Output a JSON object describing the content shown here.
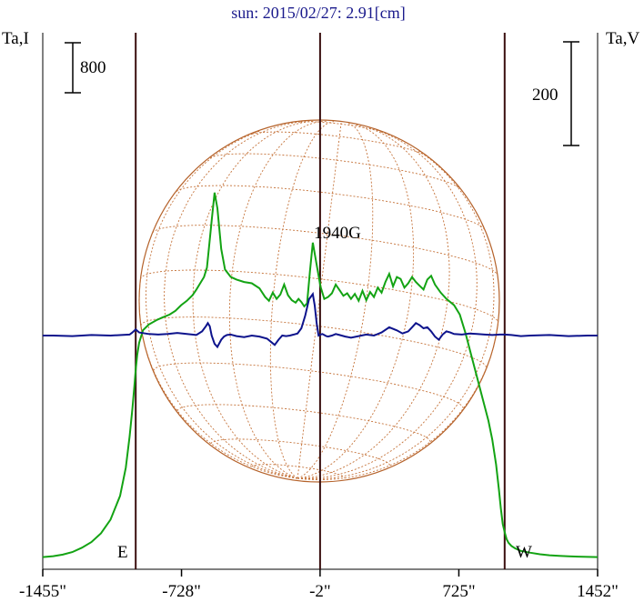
{
  "chart_data": {
    "type": "line",
    "title": "sun: 2015/02/27: 2.91[cm]",
    "left_axis_label": "Ta,I",
    "right_axis_label": "Ta,V",
    "left_scale_bar_label": "800",
    "right_scale_bar_label": "200",
    "annotation": "1940G",
    "limb_labels": {
      "east": "E",
      "west": "W"
    },
    "x_tick_labels": [
      "-1455\"",
      "-728\"",
      "-2\"",
      "725\"",
      "1452\""
    ],
    "x_ticks": [
      -1455,
      -728,
      -2,
      725,
      1452
    ],
    "xlim": [
      -1455,
      1452
    ],
    "limb_positions": [
      -968,
      965
    ],
    "center_line": -2,
    "grid": false,
    "colors": {
      "intensity": "#13a313",
      "polarization": "#0d138c",
      "disk": "#b5622a",
      "grid": "#c5733a",
      "limb_lines": "#3a0f0f",
      "title": "#1a1a8c"
    },
    "series": [
      {
        "name": "Ta,I",
        "axis": "left",
        "x": [
          -1455,
          -1400,
          -1350,
          -1300,
          -1250,
          -1200,
          -1150,
          -1100,
          -1050,
          -1020,
          -1000,
          -985,
          -975,
          -968,
          -960,
          -950,
          -930,
          -900,
          -860,
          -830,
          -790,
          -760,
          -730,
          -700,
          -670,
          -650,
          -630,
          -610,
          -595,
          -585,
          -570,
          -555,
          -540,
          -520,
          -500,
          -470,
          -440,
          -400,
          -360,
          -320,
          -290,
          -270,
          -250,
          -230,
          -210,
          -190,
          -170,
          -150,
          -130,
          -115,
          -100,
          -85,
          -70,
          -55,
          -40,
          -20,
          0,
          20,
          40,
          60,
          80,
          100,
          120,
          140,
          160,
          180,
          200,
          220,
          240,
          260,
          280,
          300,
          320,
          340,
          360,
          380,
          400,
          420,
          440,
          460,
          480,
          500,
          520,
          540,
          560,
          580,
          600,
          630,
          660,
          700,
          730,
          760,
          790,
          820,
          850,
          880,
          900,
          920,
          935,
          945,
          955,
          965,
          975,
          985,
          1000,
          1020,
          1050,
          1100,
          1150,
          1200,
          1250,
          1300,
          1350,
          1400,
          1452
        ],
        "values": [
          20,
          35,
          60,
          100,
          170,
          260,
          400,
          620,
          1000,
          1450,
          1950,
          2400,
          2750,
          3020,
          3260,
          3450,
          3650,
          3740,
          3810,
          3850,
          3900,
          3960,
          4050,
          4120,
          4210,
          4300,
          4400,
          4500,
          4650,
          4950,
          5400,
          5850,
          5600,
          4950,
          4620,
          4500,
          4460,
          4420,
          4400,
          4320,
          4180,
          4120,
          4250,
          4150,
          4220,
          4380,
          4210,
          4130,
          4090,
          4150,
          4100,
          4030,
          4080,
          4600,
          5050,
          4700,
          4350,
          4150,
          4180,
          4240,
          4380,
          4290,
          4200,
          4240,
          4150,
          4230,
          4120,
          4280,
          4130,
          4260,
          4180,
          4330,
          4250,
          4420,
          4550,
          4350,
          4500,
          4470,
          4330,
          4400,
          4500,
          4420,
          4360,
          4300,
          4460,
          4520,
          4380,
          4250,
          4150,
          4050,
          3900,
          3600,
          3250,
          2900,
          2550,
          2200,
          1900,
          1500,
          1100,
          800,
          550,
          420,
          310,
          250,
          200,
          160,
          120,
          90,
          65,
          50,
          40,
          32,
          27,
          23,
          20
        ]
      },
      {
        "name": "Ta,V",
        "axis": "right",
        "x": [
          -1455,
          -1400,
          -1300,
          -1200,
          -1100,
          -1000,
          -985,
          -968,
          -950,
          -900,
          -850,
          -800,
          -750,
          -700,
          -650,
          -620,
          -600,
          -590,
          -580,
          -570,
          -555,
          -540,
          -520,
          -505,
          -490,
          -470,
          -440,
          -400,
          -360,
          -320,
          -280,
          -260,
          -240,
          -220,
          -200,
          -180,
          -160,
          -140,
          -120,
          -100,
          -80,
          -60,
          -40,
          -30,
          -20,
          -10,
          0,
          10,
          20,
          30,
          40,
          60,
          80,
          100,
          130,
          160,
          200,
          240,
          280,
          320,
          360,
          400,
          430,
          460,
          480,
          500,
          520,
          540,
          560,
          580,
          600,
          620,
          640,
          660,
          680,
          700,
          740,
          780,
          820,
          860,
          900,
          940,
          965,
          1000,
          1050,
          1100,
          1200,
          1300,
          1400,
          1452
        ],
        "values": [
          0,
          0,
          -1,
          1,
          0,
          2,
          6,
          12,
          6,
          3,
          2,
          3,
          5,
          3,
          1,
          8,
          18,
          24,
          18,
          0,
          -16,
          -22,
          -8,
          -2,
          1,
          2,
          -1,
          -3,
          0,
          -2,
          -6,
          -12,
          -18,
          -8,
          0,
          -1,
          0,
          2,
          4,
          14,
          38,
          70,
          80,
          58,
          24,
          0,
          2,
          3,
          1,
          -1,
          -2,
          0,
          3,
          1,
          -2,
          -4,
          -1,
          2,
          0,
          6,
          16,
          10,
          4,
          8,
          16,
          24,
          20,
          14,
          16,
          8,
          -2,
          -8,
          2,
          8,
          6,
          3,
          2,
          4,
          3,
          2,
          1,
          2,
          2,
          1,
          -1,
          0,
          1,
          -1,
          0,
          0
        ]
      }
    ]
  }
}
